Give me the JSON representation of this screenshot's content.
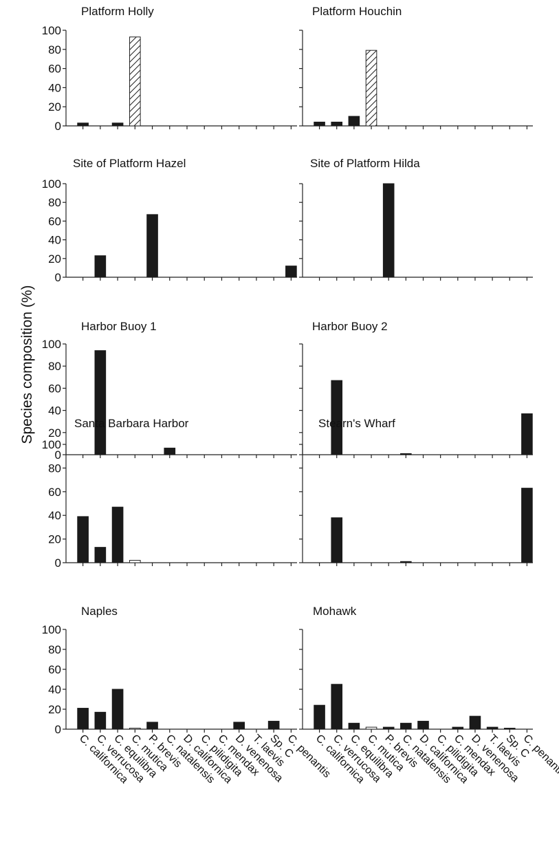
{
  "ylabel": "Species composition (%)",
  "species": [
    "C. californica",
    "C. verrucosa",
    "C. equilibra",
    "C. mutica",
    "P. brevis",
    "C. natalensis",
    "D. californica",
    "C. pilidigita",
    "C. mendax",
    "D. venenosa",
    "T. laevis",
    "Sp. C",
    "C. penantis"
  ],
  "colors": {
    "solid": "#1a1a1a",
    "axis": "#222222",
    "hatch": "#222222",
    "open_fill": "#ffffff"
  },
  "chart_data": [
    {
      "type": "bar",
      "title": "Platform Holly",
      "ylim": [
        0,
        100
      ],
      "yticks": [
        0,
        20,
        40,
        60,
        80,
        100
      ],
      "values": [
        3,
        0,
        3,
        93,
        0,
        0,
        0,
        0,
        0,
        0,
        0,
        0,
        0
      ],
      "hatched": [
        3
      ],
      "open": []
    },
    {
      "type": "bar",
      "title": "Platform Houchin",
      "ylim": [
        0,
        100
      ],
      "yticks": [],
      "values": [
        4,
        4,
        10,
        79,
        0,
        0,
        0,
        0,
        0,
        0,
        0,
        0,
        0
      ],
      "hatched": [
        3
      ],
      "open": []
    },
    {
      "type": "bar",
      "title": "Site of Platform Hazel",
      "ylim": [
        0,
        100
      ],
      "yticks": [
        0,
        20,
        40,
        60,
        80,
        100
      ],
      "values": [
        0,
        23,
        0,
        0,
        67,
        0,
        0,
        0,
        0,
        0,
        0,
        0,
        12
      ],
      "hatched": [],
      "open": []
    },
    {
      "type": "bar",
      "title": "Site of Platform Hilda",
      "ylim": [
        0,
        100
      ],
      "yticks": [],
      "values": [
        0,
        0,
        0,
        0,
        100,
        0,
        0,
        0,
        0,
        0,
        0,
        0,
        0
      ],
      "hatched": [],
      "open": []
    },
    {
      "type": "bar",
      "title": "Harbor Buoy 1",
      "ylim": [
        0,
        100
      ],
      "yticks": [
        0,
        20,
        40,
        60,
        80,
        100
      ],
      "values": [
        0,
        94,
        0,
        0,
        0,
        6,
        0,
        0,
        0,
        0,
        0,
        0,
        0
      ],
      "hatched": [],
      "open": []
    },
    {
      "type": "bar",
      "title": "Harbor Buoy 2",
      "ylim": [
        0,
        100
      ],
      "yticks": [],
      "values": [
        0,
        67,
        0,
        0,
        0,
        1,
        0,
        0,
        0,
        0,
        0,
        0,
        37
      ],
      "hatched": [],
      "open": []
    },
    {
      "type": "bar",
      "title": "Santa Barbara Harbor",
      "ylim": [
        0,
        100
      ],
      "yticks": [
        0,
        20,
        40,
        60,
        80,
        100
      ],
      "values": [
        39,
        13,
        47,
        2,
        0,
        0,
        0,
        0,
        0,
        0,
        0,
        0,
        0
      ],
      "hatched": [],
      "open": [
        3
      ]
    },
    {
      "type": "bar",
      "title": "Stearn's Wharf",
      "ylim": [
        0,
        100
      ],
      "yticks": [],
      "values": [
        0,
        38,
        0,
        0,
        0,
        1,
        0,
        0,
        0,
        0,
        0,
        0,
        63
      ],
      "hatched": [],
      "open": []
    },
    {
      "type": "bar",
      "title": "Naples",
      "ylim": [
        0,
        100
      ],
      "yticks": [
        0,
        20,
        40,
        60,
        80,
        100
      ],
      "values": [
        21,
        17,
        40,
        1,
        7,
        0,
        0,
        0,
        0,
        7,
        0,
        8,
        0
      ],
      "hatched": [],
      "open": [
        3
      ]
    },
    {
      "type": "bar",
      "title": "Mohawk",
      "ylim": [
        0,
        100
      ],
      "yticks": [],
      "values": [
        24,
        45,
        6,
        2,
        2,
        6,
        8,
        0,
        2,
        13,
        2,
        1,
        0
      ],
      "hatched": [],
      "open": [
        3
      ]
    }
  ]
}
